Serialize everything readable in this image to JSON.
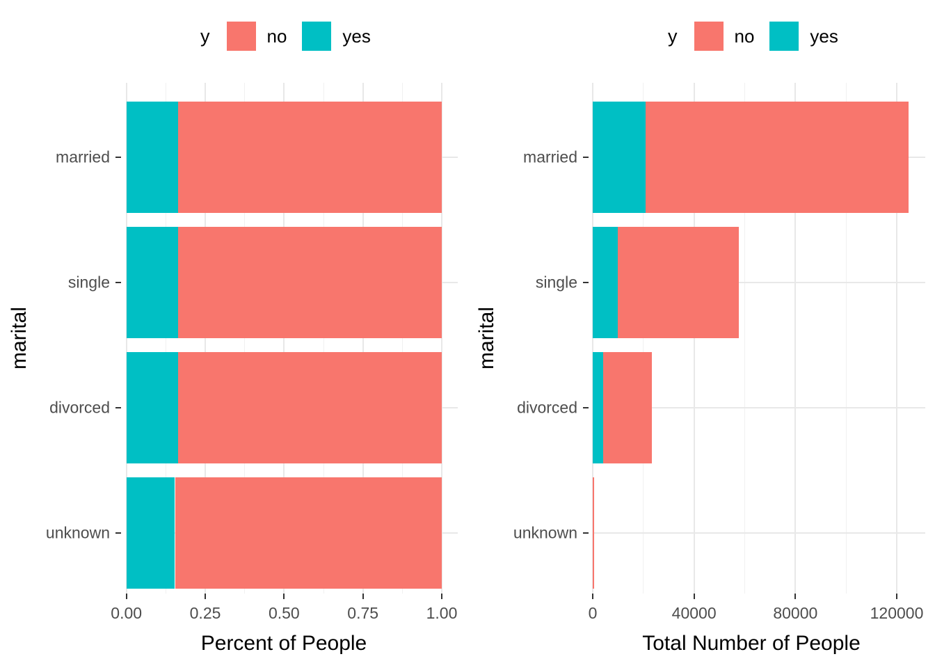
{
  "figure": {
    "background": "#FFFFFF",
    "text_colors": {
      "axis_text": "#4D4D4D",
      "titles": "#000000"
    },
    "grid_colors": {
      "major": "#E8E8E8",
      "minor": "#F1F1F1"
    }
  },
  "chart_data": [
    {
      "type": "bar",
      "orientation": "horizontal",
      "stacked": true,
      "position": "fill",
      "title": "",
      "xlabel": "Percent of People",
      "ylabel": "marital",
      "categories": [
        "married",
        "single",
        "divorced",
        "unknown"
      ],
      "series": [
        {
          "name": "yes",
          "color": "#00BFC4",
          "values": [
            0.163,
            0.163,
            0.164,
            0.154
          ]
        },
        {
          "name": "no",
          "color": "#F8766D",
          "values": [
            0.837,
            0.837,
            0.836,
            0.846
          ]
        }
      ],
      "xlim": [
        0,
        1
      ],
      "x_ticks": {
        "values": [
          0,
          0.25,
          0.5,
          0.75,
          1
        ],
        "labels": [
          "0.00",
          "0.25",
          "0.50",
          "0.75",
          "1.00"
        ]
      },
      "x_minor_ticks": [
        0.125,
        0.375,
        0.625,
        0.875
      ],
      "grid": true,
      "legend": {
        "title": "y",
        "position": "top",
        "entries": [
          "no",
          "yes"
        ],
        "entry_colors": [
          "#F8766D",
          "#00BFC4"
        ]
      }
    },
    {
      "type": "bar",
      "orientation": "horizontal",
      "stacked": true,
      "position": "stack",
      "title": "",
      "xlabel": "Total Number of People",
      "ylabel": "marital",
      "categories": [
        "married",
        "single",
        "divorced",
        "unknown"
      ],
      "series": [
        {
          "name": "yes",
          "color": "#00BFC4",
          "values": [
            20900,
            10000,
            4000,
            90
          ]
        },
        {
          "name": "no",
          "color": "#F8766D",
          "values": [
            103800,
            47700,
            19300,
            460
          ]
        }
      ],
      "xlim": [
        0,
        131000
      ],
      "x_ticks": {
        "values": [
          0,
          40000,
          80000,
          120000
        ],
        "labels": [
          "0",
          "40000",
          "80000",
          "120000"
        ]
      },
      "x_minor_ticks": [
        20000,
        60000,
        100000
      ],
      "grid": true,
      "legend": {
        "title": "y",
        "position": "top",
        "entries": [
          "no",
          "yes"
        ],
        "entry_colors": [
          "#F8766D",
          "#00BFC4"
        ]
      }
    }
  ]
}
